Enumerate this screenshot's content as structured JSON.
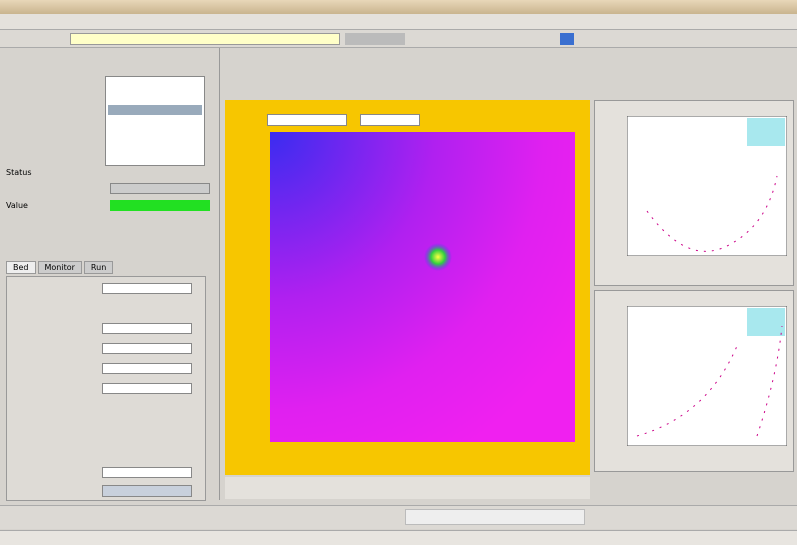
{
  "panel": {
    "status_heading": "Status",
    "value_label": "Value",
    "tabs": [
      "Bed",
      "Monitor",
      "Run"
    ]
  }
}
